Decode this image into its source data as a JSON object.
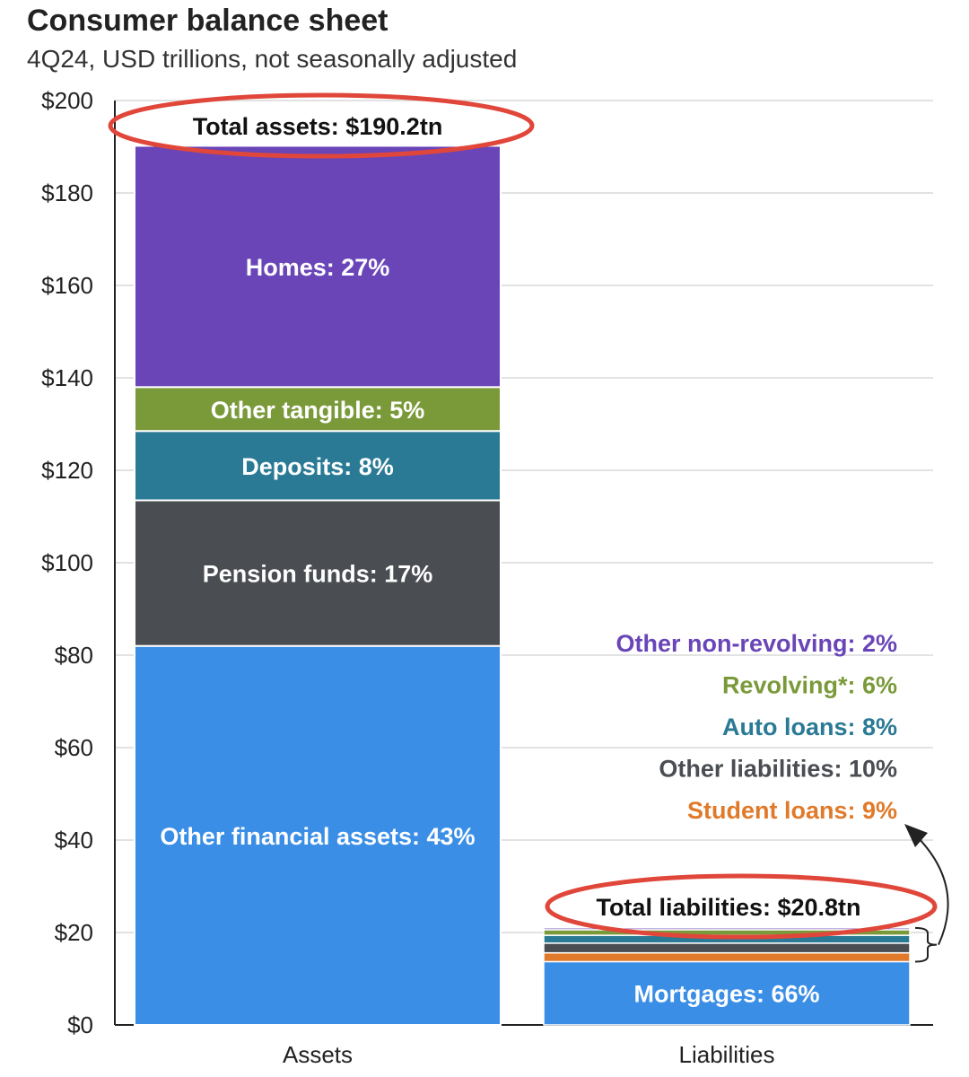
{
  "header": {
    "title": "Consumer balance sheet",
    "subtitle": "4Q24, USD trillions, not seasonally adjusted"
  },
  "chart_data": {
    "type": "bar",
    "stacked": true,
    "categories": [
      "Assets",
      "Liabilities"
    ],
    "ylim": [
      0,
      200
    ],
    "yticks": [
      0,
      20,
      40,
      60,
      80,
      100,
      120,
      140,
      160,
      180,
      200
    ],
    "ytick_labels": [
      "$0",
      "$20",
      "$40",
      "$60",
      "$80",
      "$100",
      "$120",
      "$140",
      "$160",
      "$180",
      "$200"
    ],
    "grid": true,
    "assets": {
      "total_label": "Total assets: $190.2tn",
      "total": 190.2,
      "segments": [
        {
          "name": "Other financial assets",
          "label": "Other financial assets: 43%",
          "value": 82.0,
          "color": "#3a8ee6"
        },
        {
          "name": "Pension funds",
          "label": "Pension funds: 17%",
          "value": 31.5,
          "color": "#4a4d52"
        },
        {
          "name": "Deposits",
          "label": "Deposits: 8%",
          "value": 15.0,
          "color": "#2a7a96"
        },
        {
          "name": "Other tangible",
          "label": "Other tangible: 5%",
          "value": 9.5,
          "color": "#7a9a3a"
        },
        {
          "name": "Homes",
          "label": "Homes: 27%",
          "value": 52.2,
          "color": "#6a45b8"
        }
      ]
    },
    "liabilities": {
      "total_label": "Total liabilities: $20.8tn",
      "total": 20.8,
      "segments": [
        {
          "name": "Mortgages",
          "label": "Mortgages: 66%",
          "value": 13.7,
          "color": "#3a8ee6"
        },
        {
          "name": "Student loans",
          "label": "Student loans: 9%",
          "value": 1.9,
          "color": "#e07a2a"
        },
        {
          "name": "Other liabilities",
          "label": "Other liabilities: 10%",
          "value": 2.1,
          "color": "#4a4d52"
        },
        {
          "name": "Auto loans",
          "label": "Auto loans: 8%",
          "value": 1.7,
          "color": "#2a7a96"
        },
        {
          "name": "Revolving",
          "label": "Revolving*: 6%",
          "value": 1.2,
          "color": "#7a9a3a"
        },
        {
          "name": "Other non-revolving",
          "label": "Other non-revolving: 2%",
          "value": 0.4,
          "color": "#6a45b8"
        }
      ]
    },
    "annotation_color": "#e0473a"
  }
}
